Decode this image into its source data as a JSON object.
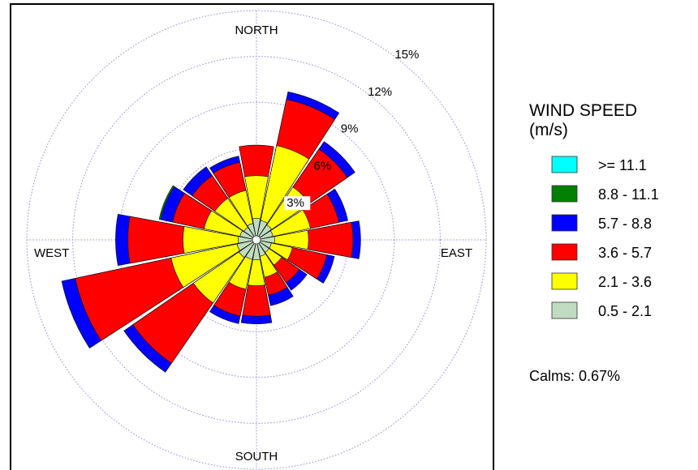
{
  "chart_data": {
    "type": "polar-stacked-bar",
    "directions": [
      "N",
      "NNE",
      "NE",
      "ENE",
      "E",
      "ESE",
      "SE",
      "SSE",
      "S",
      "SSW",
      "SW",
      "WSW",
      "W",
      "WNW",
      "NW",
      "NNW"
    ],
    "direction_labels": {
      "north": "NORTH",
      "east": "EAST",
      "south": "SOUTH",
      "west": "WEST"
    },
    "rings": [
      3,
      6,
      9,
      12,
      15
    ],
    "ring_labels": [
      "3%",
      "6%",
      "9%",
      "12%",
      "15%"
    ],
    "legend": {
      "title_line1": "WIND SPEED",
      "title_line2": "(m/s)",
      "bins": [
        {
          "label": ">= 11.1",
          "color": "#00ffff"
        },
        {
          "label": "8.8 - 11.1",
          "color": "#008000"
        },
        {
          "label": "5.7 -  8.8",
          "color": "#0000ff"
        },
        {
          "label": "3.6 -  5.7",
          "color": "#ff0000"
        },
        {
          "label": "2.1 -  3.6",
          "color": "#ffff00"
        },
        {
          "label": "0.5 -  2.1",
          "color": "#c0dcc0"
        }
      ]
    },
    "calms": "Calms: 0.67%",
    "stack_order": [
      "0.5 -  2.1",
      "2.1 -  3.6",
      "3.6 -  5.7",
      "5.7 -  8.8",
      "8.8 - 11.1",
      ">= 11.1"
    ],
    "cumulative_percent": [
      [
        1.4,
        4.2,
        6.2,
        6.2,
        6.2,
        6.2
      ],
      [
        1.3,
        6.3,
        9.4,
        9.9,
        9.9,
        9.9
      ],
      [
        1.2,
        4.2,
        7.2,
        7.8,
        7.8,
        7.8
      ],
      [
        1.1,
        3.6,
        5.5,
        6.1,
        6.1,
        6.1
      ],
      [
        1.2,
        3.4,
        6.3,
        6.8,
        6.8,
        6.8
      ],
      [
        1.0,
        2.4,
        4.7,
        5.2,
        5.2,
        5.2
      ],
      [
        1.0,
        2.0,
        3.4,
        4.0,
        4.0,
        4.0
      ],
      [
        1.1,
        2.5,
        3.7,
        4.4,
        4.4,
        4.4
      ],
      [
        1.3,
        3.0,
        5.0,
        5.5,
        5.5,
        5.5
      ],
      [
        1.3,
        3.3,
        5.1,
        5.6,
        5.6,
        5.6
      ],
      [
        1.4,
        5.0,
        9.8,
        10.5,
        10.5,
        10.5
      ],
      [
        1.3,
        5.7,
        12.1,
        13.0,
        13.0,
        13.0
      ],
      [
        1.2,
        4.8,
        8.4,
        9.2,
        9.2,
        9.2
      ],
      [
        1.1,
        3.5,
        5.6,
        6.4,
        6.5,
        6.5
      ],
      [
        1.0,
        3.3,
        5.1,
        5.8,
        5.8,
        5.8
      ],
      [
        1.1,
        3.3,
        5.2,
        5.6,
        5.6,
        5.6
      ]
    ],
    "rmax_percent": 15,
    "grid": true,
    "legend_position": "right"
  }
}
